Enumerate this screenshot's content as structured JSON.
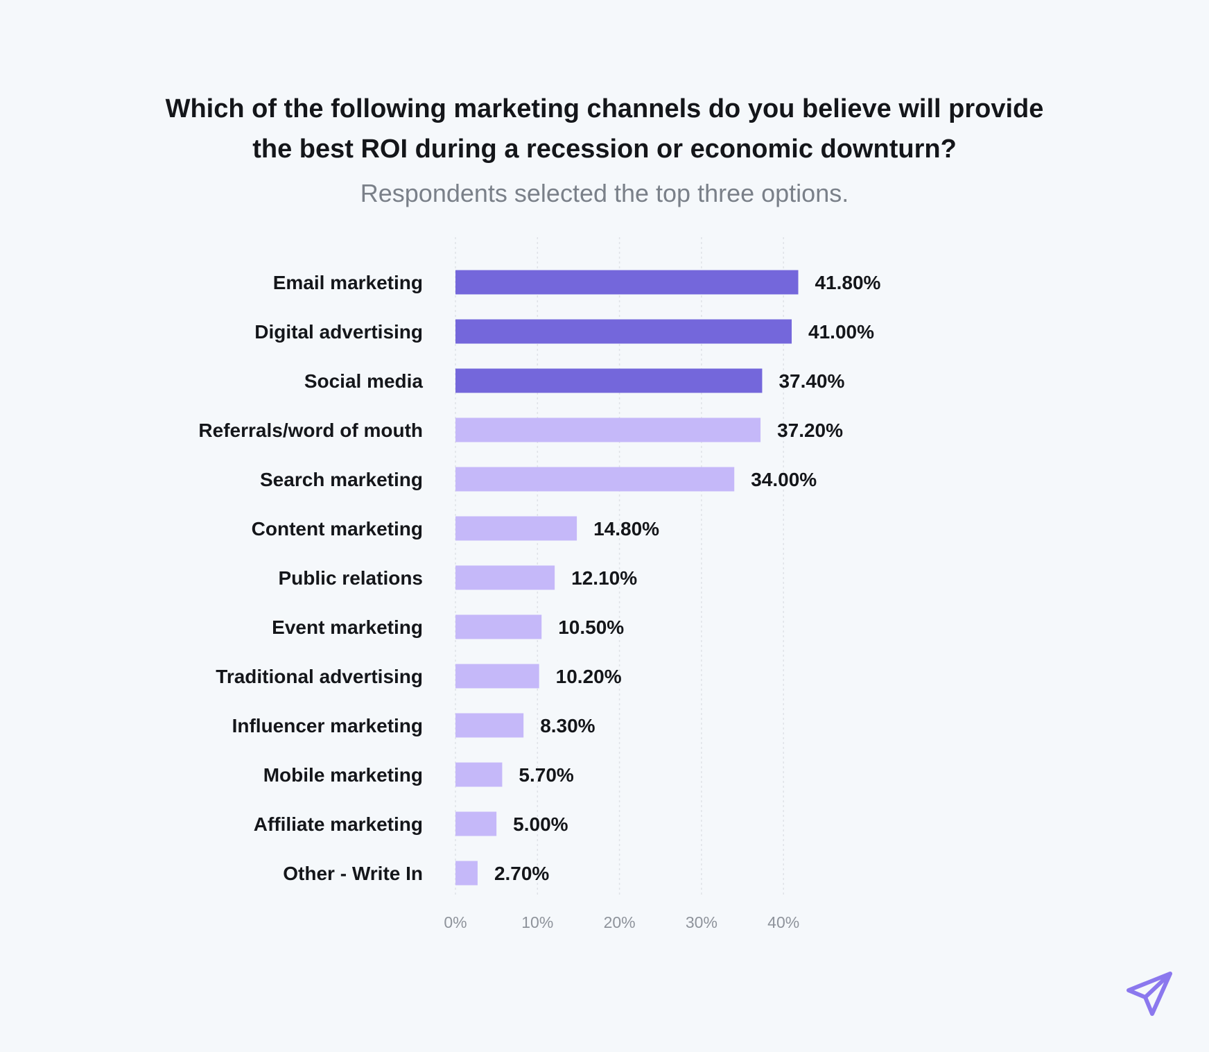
{
  "chart_data": {
    "type": "bar",
    "orientation": "horizontal",
    "title": "Which of the following marketing channels do you believe will provide the best ROI during a recession or economic downturn?",
    "title_lines": [
      "Which of the following marketing channels do you believe will provide",
      "the best ROI during a recession or economic downturn?"
    ],
    "subtitle": "Respondents selected the top three options.",
    "categories": [
      "Email marketing",
      "Digital advertising",
      "Social media",
      "Referrals/word of mouth",
      "Search marketing",
      "Content marketing",
      "Public relations",
      "Event marketing",
      "Traditional advertising",
      "Influencer marketing",
      "Mobile marketing",
      "Affiliate marketing",
      "Other - Write In"
    ],
    "values": [
      41.8,
      41.0,
      37.4,
      37.2,
      34.0,
      14.8,
      12.1,
      10.5,
      10.2,
      8.3,
      5.7,
      5.0,
      2.7
    ],
    "value_labels": [
      "41.80%",
      "41.00%",
      "37.40%",
      "37.20%",
      "34.00%",
      "14.80%",
      "12.10%",
      "10.50%",
      "10.20%",
      "8.30%",
      "5.70%",
      "5.00%",
      "2.70%"
    ],
    "highlighted": [
      true,
      true,
      true,
      false,
      false,
      false,
      false,
      false,
      false,
      false,
      false,
      false,
      false
    ],
    "xlim": [
      0,
      40
    ],
    "xticks": [
      0,
      10,
      20,
      30,
      40
    ],
    "xtick_labels": [
      "0%",
      "10%",
      "20%",
      "30%",
      "40%"
    ],
    "xlabel": "",
    "ylabel": "",
    "grid": true,
    "colors": {
      "highlight": "#7467db",
      "default": "#c5b8f9",
      "grid": "#dfe2e7",
      "text": "#14161a",
      "tick": "#8e939b",
      "background": "#f5f8fb"
    }
  },
  "logo": {
    "icon": "paper-plane-icon",
    "color": "#8b78ee"
  }
}
